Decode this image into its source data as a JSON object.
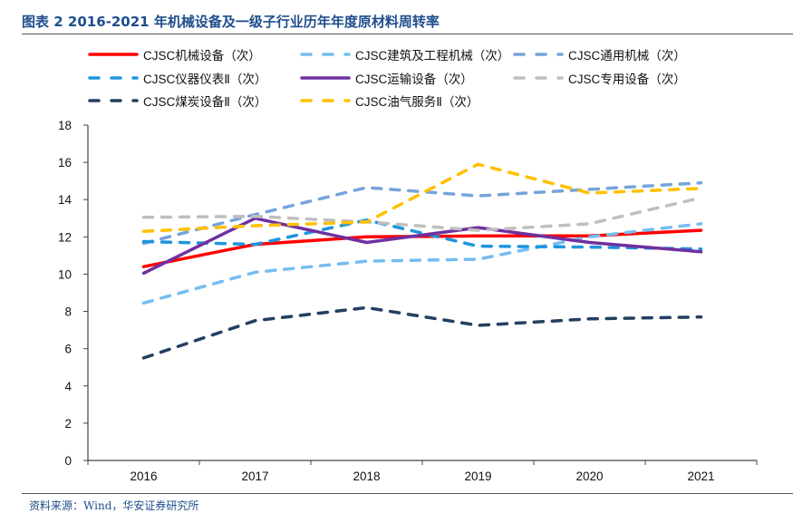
{
  "figure": {
    "title": "图表 2 2016-2021 年机械设备及一级子行业历年年度原材料周转率",
    "source": "资料来源：Wind，华安证券研究所"
  },
  "chart_data": {
    "type": "line",
    "title": "2016-2021 年机械设备及一级子行业历年年度原材料周转率",
    "xlabel": "",
    "ylabel": "",
    "categories": [
      "2016",
      "2017",
      "2018",
      "2019",
      "2020",
      "2021"
    ],
    "ylim": [
      0,
      18
    ],
    "yticks": [
      0,
      2,
      4,
      6,
      8,
      10,
      12,
      14,
      16,
      18
    ],
    "ytick_labels": [
      "0",
      "2",
      "4",
      "6",
      "8",
      "10",
      "12",
      "14",
      "16",
      "18"
    ],
    "grid": false,
    "legend_position": "top",
    "series": [
      {
        "name": "CJSC机械设备（次）",
        "color": "#ff0000",
        "style": "solid",
        "values": [
          10.4,
          11.6,
          12.0,
          12.05,
          12.05,
          12.35
        ]
      },
      {
        "name": "CJSC建筑及工程机械（次）",
        "color": "#75bdf0",
        "style": "dashed",
        "values": [
          8.45,
          10.1,
          10.7,
          10.8,
          12.0,
          12.7
        ]
      },
      {
        "name": "CJSC通用机械（次）",
        "color": "#75a4dc",
        "style": "dashed",
        "values": [
          11.65,
          13.2,
          14.65,
          14.2,
          14.55,
          14.9
        ]
      },
      {
        "name": "CJSC仪器仪表Ⅱ（次）",
        "color": "#1f95dd",
        "style": "dashed",
        "values": [
          11.75,
          11.6,
          12.9,
          11.5,
          11.45,
          11.35
        ]
      },
      {
        "name": "CJSC运输设备（次）",
        "color": "#7030a0",
        "style": "solid",
        "values": [
          10.05,
          13.0,
          11.7,
          12.5,
          11.7,
          11.2
        ]
      },
      {
        "name": "CJSC专用设备（次）",
        "color": "#bfbfbf",
        "style": "dashed",
        "values": [
          13.05,
          13.1,
          12.8,
          12.35,
          12.7,
          14.1
        ]
      },
      {
        "name": "CJSC煤炭设备Ⅱ（次）",
        "color": "#243f60",
        "style": "dashed",
        "values": [
          5.5,
          7.5,
          8.2,
          7.25,
          7.6,
          7.7
        ]
      },
      {
        "name": "CJSC油气服务Ⅱ（次）",
        "color": "#ffc000",
        "style": "dashed",
        "values": [
          12.3,
          12.6,
          12.8,
          15.9,
          14.35,
          14.6
        ]
      }
    ]
  }
}
